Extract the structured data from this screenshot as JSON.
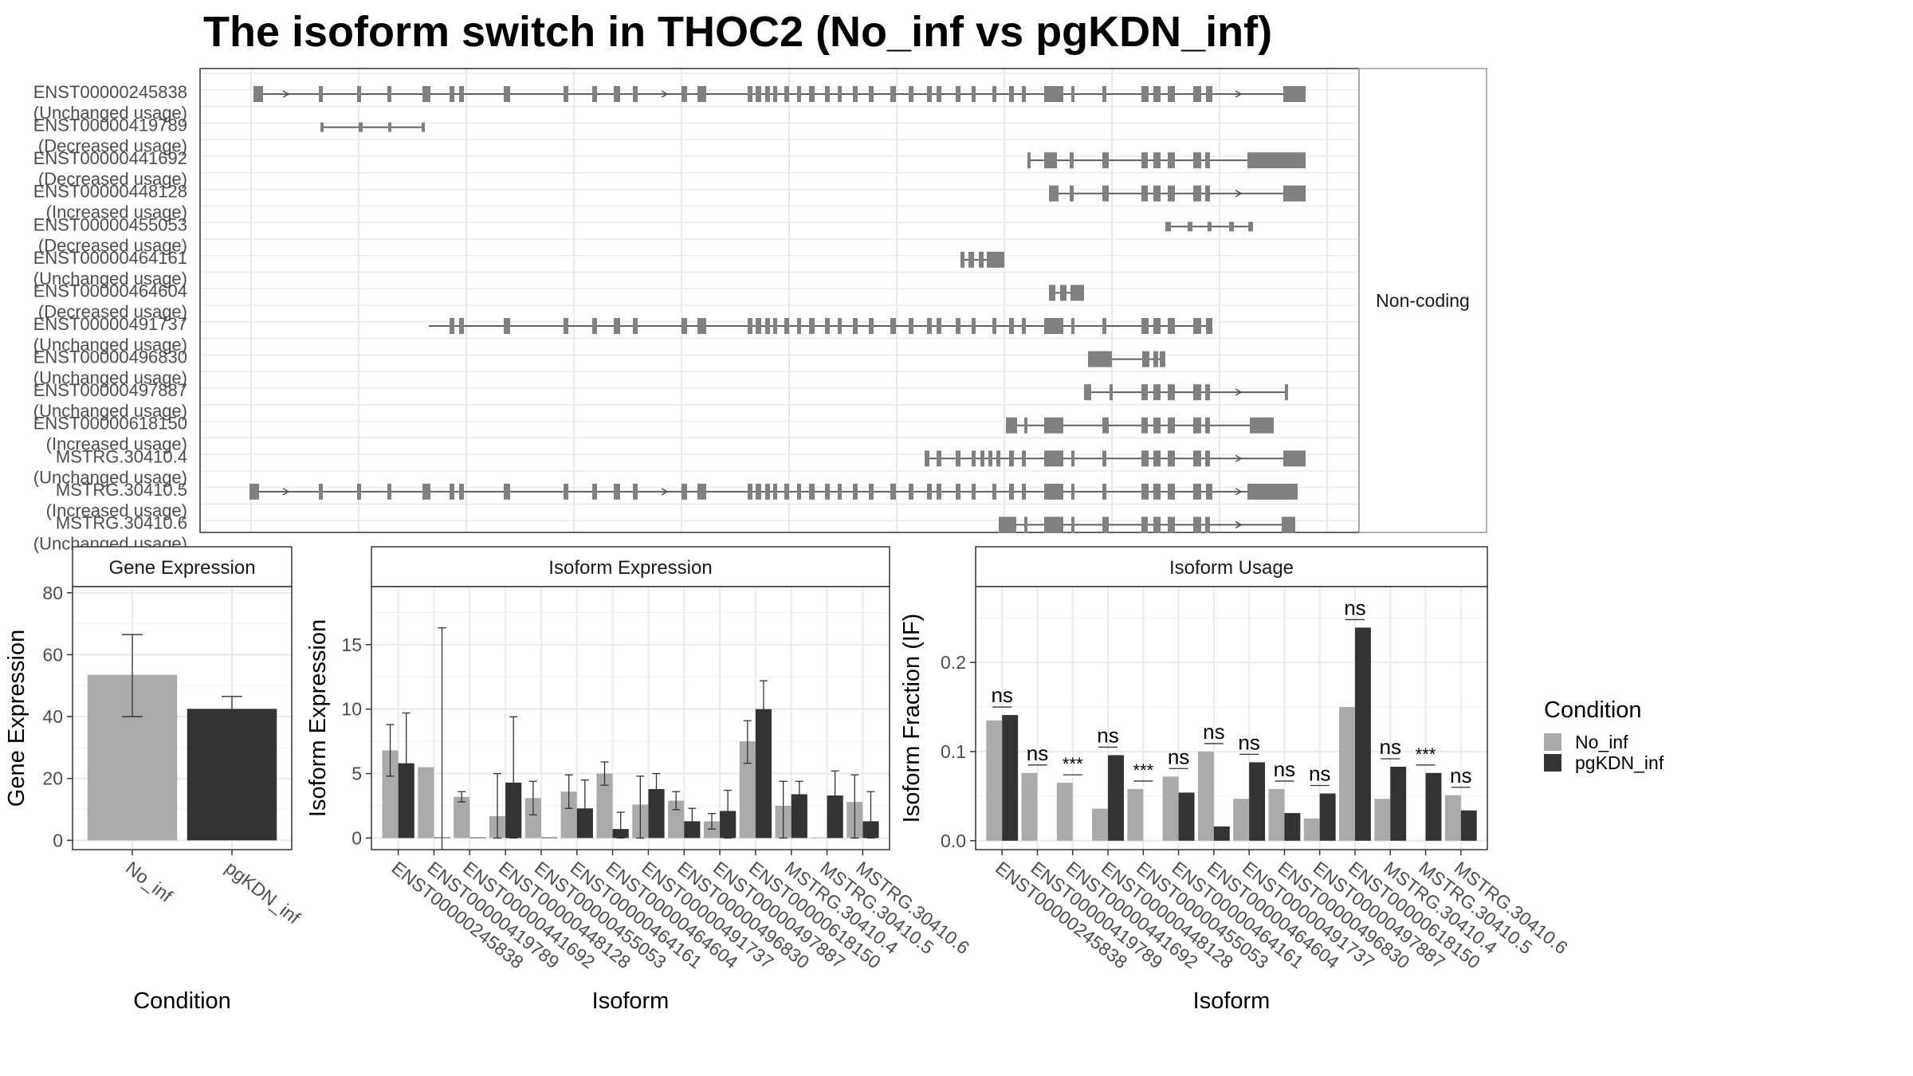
{
  "title": "The isoform switch in THOC2 (No_inf vs pgKDN_inf)",
  "colors": {
    "No_inf": "#aaaaaa",
    "pgKDN_inf": "#333333",
    "exon": "#808080",
    "grid": "#ebebeb",
    "strip": "#ffffff",
    "border": "#333333"
  },
  "legend": {
    "title": "Condition",
    "entries": [
      "No_inf",
      "pgKDN_inf"
    ]
  },
  "chart_data": [
    {
      "type": "gene-structure",
      "strip_label": "Non-coding",
      "isoforms": [
        {
          "id": "ENST00000245838",
          "usage": "(Unchanged usage)"
        },
        {
          "id": "ENST00000419789",
          "usage": "(Decreased usage)"
        },
        {
          "id": "ENST00000441692",
          "usage": "(Decreased usage)"
        },
        {
          "id": "ENST00000448128",
          "usage": "(Increased usage)"
        },
        {
          "id": "ENST00000455053",
          "usage": "(Decreased usage)"
        },
        {
          "id": "ENST00000464161",
          "usage": "(Unchanged usage)"
        },
        {
          "id": "ENST00000464604",
          "usage": "(Decreased usage)"
        },
        {
          "id": "ENST00000491737",
          "usage": "(Unchanged usage)"
        },
        {
          "id": "ENST00000496830",
          "usage": "(Unchanged usage)"
        },
        {
          "id": "ENST00000497887",
          "usage": "(Unchanged usage)"
        },
        {
          "id": "ENST00000618150",
          "usage": "(Increased usage)"
        },
        {
          "id": "MSTRG.30410.4",
          "usage": "(Unchanged usage)"
        },
        {
          "id": "MSTRG.30410.5",
          "usage": "(Increased usage)"
        },
        {
          "id": "MSTRG.30410.6",
          "usage": "(Unchanged usage)"
        }
      ]
    },
    {
      "type": "bar",
      "strip_label": "Gene Expression",
      "xlabel": "Condition",
      "ylabel": "Gene Expression",
      "categories": [
        "No_inf",
        "pgKDN_inf"
      ],
      "values": [
        53.5,
        42.5
      ],
      "err_low": [
        40,
        38.5
      ],
      "err_high": [
        66.5,
        46.5
      ],
      "ylim": [
        -3,
        82
      ],
      "yticks": [
        0,
        20,
        40,
        60,
        80
      ]
    },
    {
      "type": "bar",
      "strip_label": "Isoform Expression",
      "xlabel": "Isoform",
      "ylabel": "Isoform Expression",
      "categories": [
        "ENST00000245838",
        "ENST00000419789",
        "ENST00000441692",
        "ENST00000448128",
        "ENST00000455053",
        "ENST00000464161",
        "ENST00000464604",
        "ENST00000491737",
        "ENST00000496830",
        "ENST00000497887",
        "ENST00000618150",
        "MSTRG.30410.4",
        "MSTRG.30410.5",
        "MSTRG.30410.6"
      ],
      "series": [
        {
          "name": "No_inf",
          "values": [
            6.8,
            5.5,
            3.2,
            1.7,
            3.1,
            3.6,
            5.0,
            2.6,
            2.9,
            1.3,
            7.5,
            2.5,
            0.05,
            2.8
          ],
          "err_low": [
            4.8,
            null,
            2.8,
            0,
            1.8,
            2.3,
            4.1,
            0,
            2.2,
            0.7,
            5.8,
            0,
            null,
            0
          ],
          "err_high": [
            8.8,
            null,
            3.6,
            5.0,
            4.4,
            4.9,
            5.9,
            4.8,
            3.6,
            1.9,
            9.1,
            4.4,
            null,
            4.9
          ]
        },
        {
          "name": "pgKDN_inf",
          "values": [
            5.8,
            0.05,
            0.05,
            4.3,
            0.05,
            2.3,
            0.7,
            3.8,
            1.3,
            2.1,
            10.0,
            3.4,
            3.3,
            1.3
          ],
          "err_low": [
            1.9,
            null,
            null,
            0,
            null,
            0.1,
            0,
            2.5,
            0.3,
            0,
            7.8,
            2.3,
            1.0,
            0
          ],
          "err_high": [
            9.7,
            16.3,
            null,
            9.4,
            null,
            4.5,
            2.0,
            5.0,
            2.3,
            3.7,
            12.2,
            4.4,
            5.2,
            3.6
          ]
        }
      ],
      "ylim": [
        -0.9,
        19.5
      ],
      "yticks": [
        0,
        5,
        10,
        15
      ]
    },
    {
      "type": "bar",
      "strip_label": "Isoform Usage",
      "xlabel": "Isoform",
      "ylabel": "Isoform Fraction (IF)",
      "categories": [
        "ENST00000245838",
        "ENST00000419789",
        "ENST00000441692",
        "ENST00000448128",
        "ENST00000455053",
        "ENST00000464161",
        "ENST00000464604",
        "ENST00000491737",
        "ENST00000496830",
        "ENST00000497887",
        "ENST00000618150",
        "MSTRG.30410.4",
        "MSTRG.30410.5",
        "MSTRG.30410.6"
      ],
      "series": [
        {
          "name": "No_inf",
          "values": [
            0.135,
            0.076,
            0.065,
            0.036,
            0.058,
            0.072,
            0.1,
            0.047,
            0.058,
            0.025,
            0.15,
            0.047,
            0.0,
            0.051
          ]
        },
        {
          "name": "pgKDN_inf",
          "values": [
            0.141,
            0.0,
            0.0,
            0.096,
            0.0,
            0.054,
            0.016,
            0.088,
            0.031,
            0.053,
            0.239,
            0.083,
            0.076,
            0.034
          ]
        }
      ],
      "significance": [
        "ns",
        "ns",
        "***",
        "ns",
        "***",
        "ns",
        "ns",
        "ns",
        "ns",
        "ns",
        "ns",
        "ns",
        "***",
        "ns"
      ],
      "ylim": [
        -0.01,
        0.285
      ],
      "yticks": [
        0.0,
        0.1,
        0.2
      ],
      "ytick_labels": [
        "0.0",
        "0.1",
        "0.2"
      ]
    }
  ]
}
